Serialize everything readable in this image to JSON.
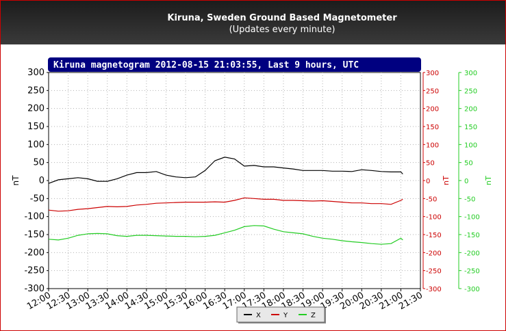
{
  "header": {
    "title": "Kiruna, Sweden Ground Based Magnetometer",
    "subtitle": "(Updates every minute)"
  },
  "chart_data": {
    "type": "line",
    "title": "Kiruna magnetogram 2012-08-15 21:03:55, Last 9 hours, UTC",
    "xlabel": "",
    "ylabel": "nT",
    "ylim": [
      -300,
      300
    ],
    "ytick_step": 50,
    "grid": true,
    "legend_position": "bottom-center",
    "x_ticks": [
      "12:00",
      "12:30",
      "13:00",
      "13:30",
      "14:00",
      "14:30",
      "15:00",
      "15:30",
      "16:00",
      "16:30",
      "17:00",
      "17:30",
      "18:00",
      "18:30",
      "19:00",
      "19:30",
      "20:00",
      "20:30",
      "21:00",
      "21:30"
    ],
    "right_axes": [
      {
        "label": "nT",
        "color": "#cc0000"
      },
      {
        "label": "nT",
        "color": "#22cc22"
      }
    ],
    "series": [
      {
        "name": "X",
        "color": "#000000",
        "x": [
          "12:00",
          "12:15",
          "12:30",
          "12:45",
          "13:00",
          "13:15",
          "13:30",
          "13:45",
          "14:00",
          "14:15",
          "14:30",
          "14:45",
          "15:00",
          "15:15",
          "15:30",
          "15:45",
          "16:00",
          "16:15",
          "16:30",
          "16:45",
          "17:00",
          "17:15",
          "17:30",
          "17:45",
          "18:00",
          "18:15",
          "18:30",
          "18:45",
          "19:00",
          "19:15",
          "19:30",
          "19:45",
          "20:00",
          "20:15",
          "20:30",
          "20:45",
          "21:00",
          "21:03"
        ],
        "values": [
          -8,
          2,
          5,
          8,
          5,
          -2,
          -2,
          5,
          15,
          22,
          22,
          25,
          15,
          10,
          8,
          10,
          28,
          55,
          65,
          60,
          40,
          42,
          38,
          38,
          35,
          32,
          28,
          28,
          28,
          26,
          26,
          25,
          30,
          28,
          25,
          24,
          24,
          18
        ]
      },
      {
        "name": "Y",
        "color": "#cc0000",
        "x": [
          "12:00",
          "12:15",
          "12:30",
          "12:45",
          "13:00",
          "13:15",
          "13:30",
          "13:45",
          "14:00",
          "14:15",
          "14:30",
          "14:45",
          "15:00",
          "15:15",
          "15:30",
          "15:45",
          "16:00",
          "16:15",
          "16:30",
          "16:45",
          "17:00",
          "17:15",
          "17:30",
          "17:45",
          "18:00",
          "18:15",
          "18:30",
          "18:45",
          "19:00",
          "19:15",
          "19:30",
          "19:45",
          "20:00",
          "20:15",
          "20:30",
          "20:45",
          "21:00",
          "21:03"
        ],
        "values": [
          -82,
          -85,
          -84,
          -80,
          -78,
          -75,
          -72,
          -73,
          -72,
          -68,
          -66,
          -63,
          -62,
          -61,
          -60,
          -60,
          -60,
          -59,
          -60,
          -55,
          -48,
          -50,
          -52,
          -52,
          -55,
          -55,
          -56,
          -57,
          -56,
          -58,
          -60,
          -62,
          -62,
          -64,
          -64,
          -66,
          -55,
          -52
        ]
      },
      {
        "name": "Z",
        "color": "#22cc22",
        "x": [
          "12:00",
          "12:15",
          "12:30",
          "12:45",
          "13:00",
          "13:15",
          "13:30",
          "13:45",
          "14:00",
          "14:15",
          "14:30",
          "14:45",
          "15:00",
          "15:15",
          "15:30",
          "15:45",
          "16:00",
          "16:15",
          "16:30",
          "16:45",
          "17:00",
          "17:15",
          "17:30",
          "17:45",
          "18:00",
          "18:15",
          "18:30",
          "18:45",
          "19:00",
          "19:15",
          "19:30",
          "19:45",
          "20:00",
          "20:15",
          "20:30",
          "20:45",
          "21:00",
          "21:03"
        ],
        "values": [
          -163,
          -165,
          -160,
          -152,
          -148,
          -147,
          -148,
          -153,
          -155,
          -152,
          -152,
          -153,
          -154,
          -155,
          -155,
          -156,
          -155,
          -152,
          -145,
          -138,
          -128,
          -125,
          -126,
          -135,
          -142,
          -145,
          -148,
          -155,
          -160,
          -163,
          -167,
          -170,
          -172,
          -175,
          -177,
          -175,
          -160,
          -165
        ]
      }
    ]
  }
}
